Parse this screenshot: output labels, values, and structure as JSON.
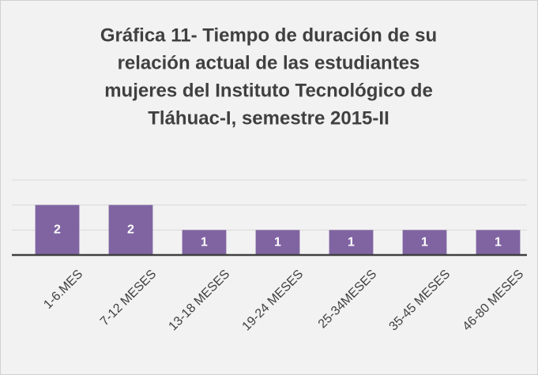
{
  "chart_data": {
    "type": "bar",
    "title": [
      "Gráfica 11- Tiempo de duración de su",
      "relación actual de las estudiantes",
      "mujeres del Instituto Tecnológico de",
      "Tláhuac-I, semestre 2015-II"
    ],
    "categories": [
      "1-6.MES",
      "7-12 MESES",
      "13-18 MESES",
      "19-24 MESES",
      "25-34MESES",
      "35-45 MESES",
      "46-80 MESES"
    ],
    "values": [
      2,
      2,
      1,
      1,
      1,
      1,
      1
    ],
    "color": "#8064a2",
    "ylim": [
      0,
      3
    ],
    "yticks": [
      0,
      1,
      2,
      3
    ],
    "grid": true
  }
}
